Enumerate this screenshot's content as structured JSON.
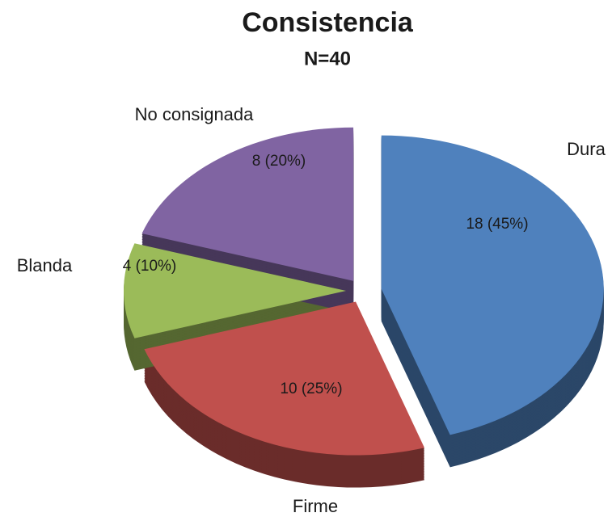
{
  "chart_data": {
    "type": "pie",
    "title": "Consistencia",
    "subtitle": "N=40",
    "categories": [
      "Dura",
      "Firme",
      "Blanda",
      "No consignada"
    ],
    "values": [
      18,
      10,
      4,
      8
    ],
    "value_labels": [
      "18 (45%)",
      "10 (25%)",
      "4 (10%)",
      "8 (20%)"
    ],
    "colors": [
      "#4f81bd",
      "#c0504d",
      "#9bbb59",
      "#8064a2"
    ]
  }
}
